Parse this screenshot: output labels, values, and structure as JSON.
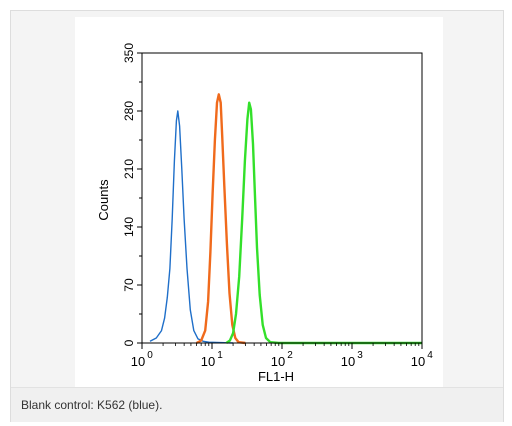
{
  "caption": "Blank control: K562 (blue).",
  "chart_data": {
    "type": "line",
    "xlabel": "FL1-H",
    "ylabel": "Counts",
    "x_scale": "log",
    "xlim": [
      1,
      10000
    ],
    "ylim": [
      0,
      350
    ],
    "x_ticks": [
      {
        "base": "10",
        "exp": "0",
        "value": 1
      },
      {
        "base": "10",
        "exp": "1",
        "value": 10
      },
      {
        "base": "10",
        "exp": "2",
        "value": 100
      },
      {
        "base": "10",
        "exp": "3",
        "value": 1000
      },
      {
        "base": "10",
        "exp": "4",
        "value": 10000
      }
    ],
    "y_ticks": [
      "0",
      "70",
      "140",
      "210",
      "280",
      "350"
    ],
    "grid": false,
    "series": [
      {
        "color": "#1f6fc9",
        "points": [
          [
            1.3,
            2
          ],
          [
            1.6,
            6
          ],
          [
            1.9,
            15
          ],
          [
            2.1,
            30
          ],
          [
            2.3,
            55
          ],
          [
            2.5,
            90
          ],
          [
            2.7,
            150
          ],
          [
            2.9,
            220
          ],
          [
            3.1,
            268
          ],
          [
            3.25,
            280
          ],
          [
            3.45,
            262
          ],
          [
            3.7,
            210
          ],
          [
            4.0,
            150
          ],
          [
            4.4,
            90
          ],
          [
            4.9,
            40
          ],
          [
            5.5,
            15
          ],
          [
            6.3,
            5
          ],
          [
            7.5,
            2
          ],
          [
            9,
            1
          ],
          [
            20,
            0
          ]
        ]
      },
      {
        "color": "#f06a1c",
        "points": [
          [
            6,
            0
          ],
          [
            7,
            3
          ],
          [
            8,
            15
          ],
          [
            8.8,
            50
          ],
          [
            9.5,
            110
          ],
          [
            10.2,
            180
          ],
          [
            11,
            245
          ],
          [
            11.8,
            290
          ],
          [
            12.5,
            300
          ],
          [
            13.3,
            290
          ],
          [
            14,
            250
          ],
          [
            15,
            190
          ],
          [
            16.3,
            120
          ],
          [
            17.8,
            60
          ],
          [
            19.5,
            22
          ],
          [
            21.5,
            6
          ],
          [
            24,
            1
          ],
          [
            30,
            0
          ]
        ]
      },
      {
        "color": "#33e02a",
        "points": [
          [
            16,
            0
          ],
          [
            18,
            3
          ],
          [
            20,
            12
          ],
          [
            22,
            35
          ],
          [
            24.5,
            80
          ],
          [
            27,
            150
          ],
          [
            29.5,
            220
          ],
          [
            32,
            270
          ],
          [
            34,
            290
          ],
          [
            36,
            282
          ],
          [
            38.5,
            240
          ],
          [
            41,
            180
          ],
          [
            44,
            115
          ],
          [
            48,
            58
          ],
          [
            53,
            22
          ],
          [
            59,
            6
          ],
          [
            68,
            1
          ],
          [
            90,
            0
          ],
          [
            10000,
            0
          ]
        ]
      }
    ]
  }
}
